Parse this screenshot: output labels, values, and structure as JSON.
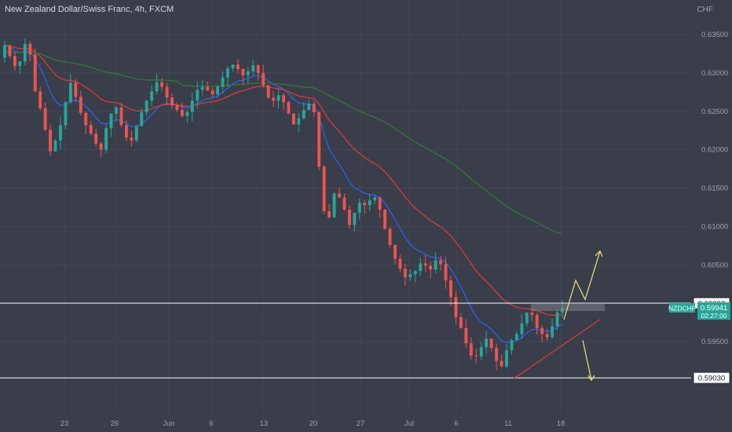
{
  "header": {
    "title": "New Zealand Dollar/Swiss Franc, 4h, FXCM",
    "currency": "CHF"
  },
  "colors": {
    "background": "#3a3e4a",
    "up": "#26a69a",
    "down": "#ef5350",
    "ema_fast": "#2962ff",
    "ema_mid": "#e53935",
    "ema_slow": "#2e7d32",
    "annotation_arrow": "#e8e57a",
    "trendline": "#e53935",
    "level": "#ffffff",
    "text": "#9aa0ad"
  },
  "chart_data": {
    "type": "candlestick",
    "symbol": "NZDCHF",
    "timeframe": "4h",
    "ylim": [
      0.5855,
      0.6395
    ],
    "y_ticks": [
      "0.63500",
      "0.63000",
      "0.62500",
      "0.62000",
      "0.61500",
      "0.61000",
      "0.60500",
      "0.59500"
    ],
    "x_ticks": [
      "23",
      "26",
      "Jun",
      "6",
      "13",
      "20",
      "27",
      "Jul",
      "6",
      "11",
      "18"
    ],
    "levels": [
      {
        "value": 0.60002,
        "label": "0.60002"
      },
      {
        "value": 0.5903,
        "label": "0.59030"
      }
    ],
    "current_price": {
      "symbol": "NZDCHF",
      "value": "0.59941",
      "countdown": "02:27:00"
    },
    "close_series": [
      0.6336,
      0.6322,
      0.6309,
      0.6315,
      0.6338,
      0.6324,
      0.6276,
      0.6254,
      0.6226,
      0.6198,
      0.6212,
      0.6232,
      0.6262,
      0.6287,
      0.6269,
      0.6248,
      0.6232,
      0.6221,
      0.6208,
      0.62,
      0.6228,
      0.6247,
      0.6255,
      0.6232,
      0.6216,
      0.6212,
      0.6231,
      0.6249,
      0.6264,
      0.6276,
      0.6288,
      0.6282,
      0.6268,
      0.6258,
      0.6252,
      0.6244,
      0.6249,
      0.6264,
      0.6278,
      0.6282,
      0.6277,
      0.6272,
      0.6282,
      0.6294,
      0.6306,
      0.6311,
      0.6305,
      0.6297,
      0.6302,
      0.631,
      0.63,
      0.6284,
      0.6268,
      0.6264,
      0.6271,
      0.6262,
      0.6247,
      0.6233,
      0.6241,
      0.6252,
      0.626,
      0.6249,
      0.6178,
      0.612,
      0.6112,
      0.6143,
      0.6138,
      0.6122,
      0.6102,
      0.6118,
      0.6131,
      0.6128,
      0.6134,
      0.6138,
      0.6122,
      0.6097,
      0.6076,
      0.6058,
      0.6045,
      0.6034,
      0.6038,
      0.6042,
      0.6052,
      0.6049,
      0.6044,
      0.6056,
      0.6051,
      0.603,
      0.6008,
      0.5982,
      0.5968,
      0.5948,
      0.5932,
      0.5931,
      0.5943,
      0.5954,
      0.5942,
      0.5925,
      0.5918,
      0.5939,
      0.5952,
      0.596,
      0.5974,
      0.5988,
      0.5985,
      0.5968,
      0.596,
      0.5956,
      0.597,
      0.5988,
      0.5994
    ],
    "moving_averages": [
      {
        "color": "#2962ff"
      },
      {
        "color": "#e53935"
      },
      {
        "color": "#2e7d32"
      }
    ],
    "annotations": [
      {
        "type": "projection",
        "direction": "up",
        "target": 0.6068
      },
      {
        "type": "projection",
        "direction": "down",
        "target": 0.59
      },
      {
        "type": "trendline",
        "from": 0.5902,
        "to": 0.5979
      }
    ]
  }
}
